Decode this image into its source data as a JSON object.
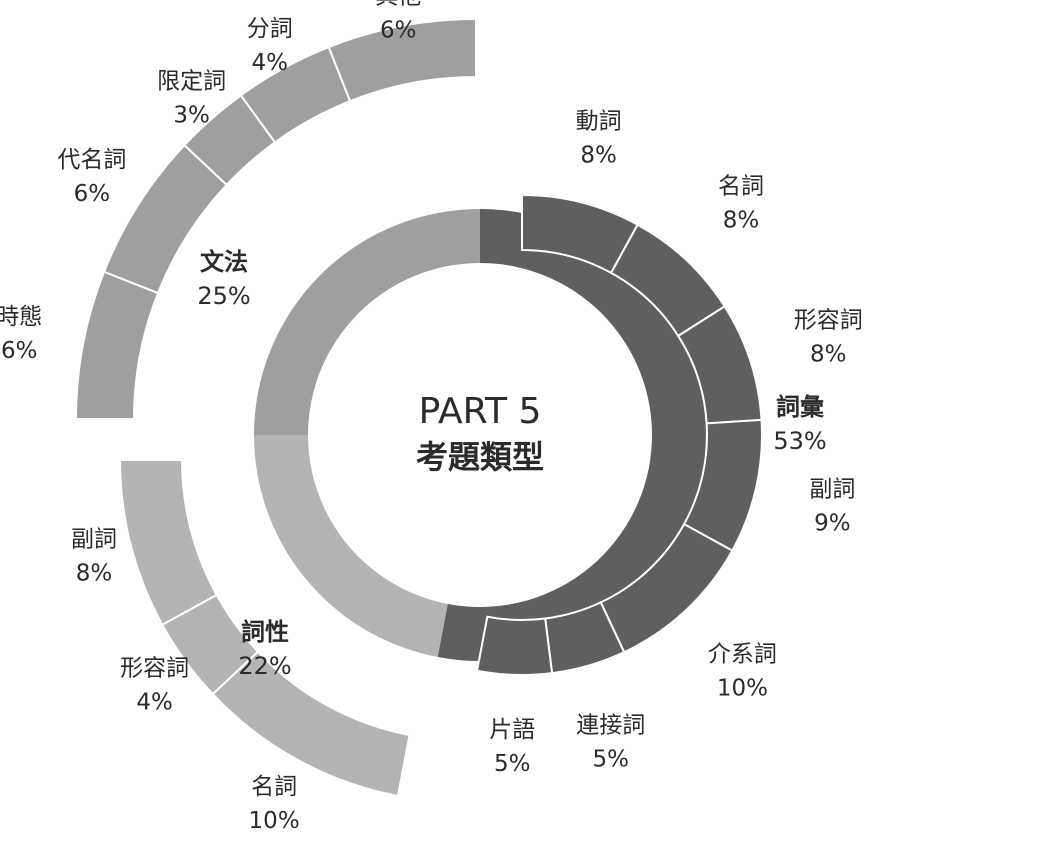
{
  "chart_data": {
    "type": "pie",
    "title": "PART 5",
    "subtitle": "考題類型",
    "groups": [
      {
        "name": "詞彙",
        "percent": "53%",
        "value": 53,
        "color": "#5f5f5f",
        "items": [
          {
            "name": "動詞",
            "percent": "8%",
            "value": 8
          },
          {
            "name": "名詞",
            "percent": "8%",
            "value": 8
          },
          {
            "name": "形容詞",
            "percent": "8%",
            "value": 8
          },
          {
            "name": "副詞",
            "percent": "9%",
            "value": 9
          },
          {
            "name": "介系詞",
            "percent": "10%",
            "value": 10
          },
          {
            "name": "連接詞",
            "percent": "5%",
            "value": 5
          },
          {
            "name": "片語",
            "percent": "5%",
            "value": 5
          }
        ]
      },
      {
        "name": "詞性",
        "percent": "22%",
        "value": 22,
        "color": "#b4b4b4",
        "items": [
          {
            "name": "名詞",
            "percent": "10%",
            "value": 10
          },
          {
            "name": "形容詞",
            "percent": "4%",
            "value": 4
          },
          {
            "name": "副詞",
            "percent": "8%",
            "value": 8
          }
        ]
      },
      {
        "name": "文法",
        "percent": "25%",
        "value": 25,
        "color": "#9f9f9f",
        "items": [
          {
            "name": "時態",
            "percent": "6%",
            "value": 6
          },
          {
            "name": "代名詞",
            "percent": "6%",
            "value": 6
          },
          {
            "name": "限定詞",
            "percent": "3%",
            "value": 3
          },
          {
            "name": "分詞",
            "percent": "4%",
            "value": 4
          },
          {
            "name": "其他",
            "percent": "6%",
            "value": 6
          }
        ]
      }
    ]
  }
}
